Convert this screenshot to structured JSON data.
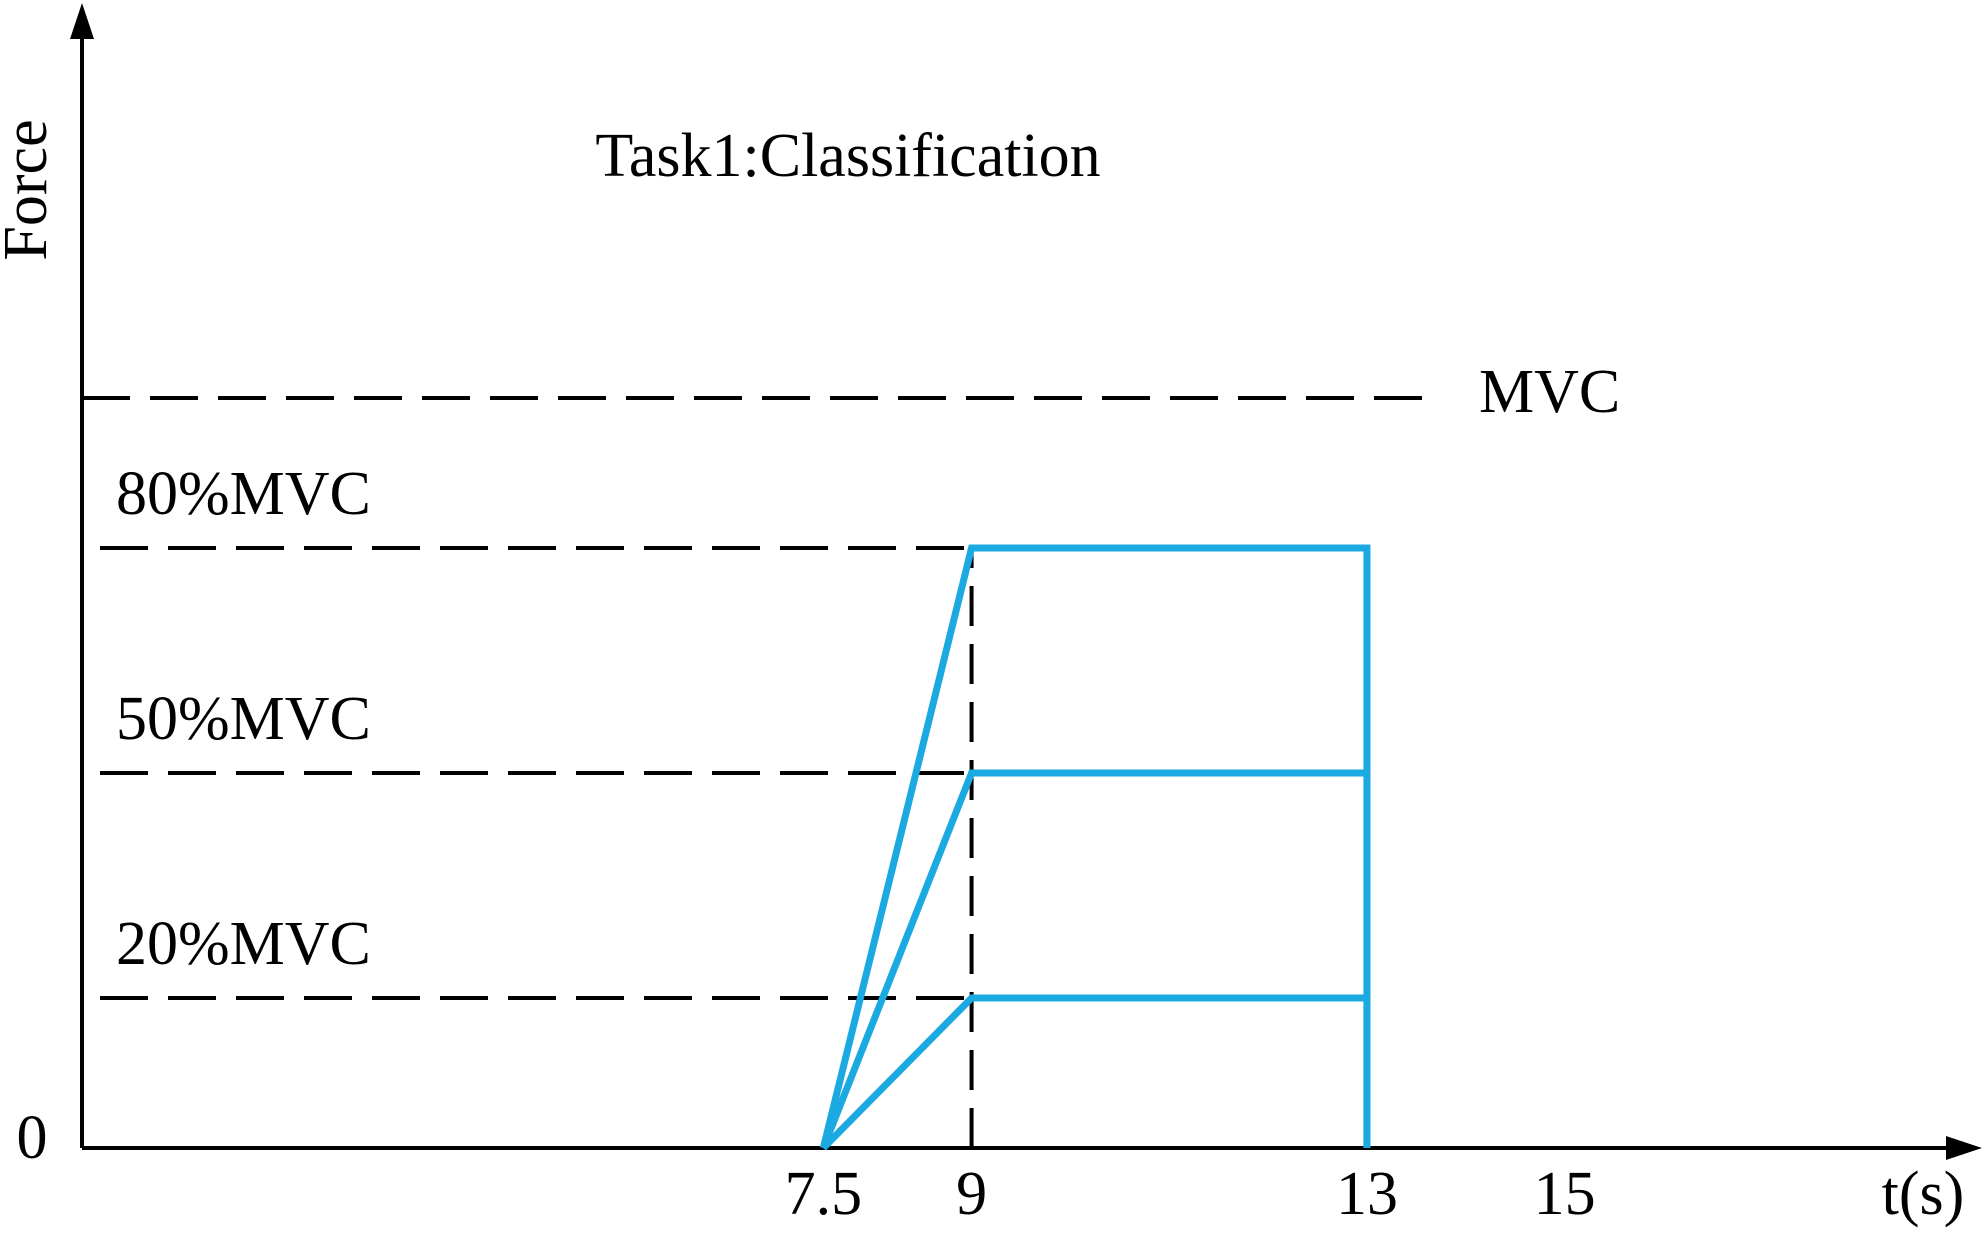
{
  "chart_data": {
    "type": "line",
    "title": "Task1:Classification",
    "y_label": "Force",
    "x_label": "t(s)",
    "xlim": [
      0,
      19
    ],
    "ylim": [
      0,
      150
    ],
    "xticks": [
      7.5,
      9,
      13,
      15
    ],
    "yticks": [
      0
    ],
    "reference_lines": [
      {
        "label": "MVC",
        "value": 100
      },
      {
        "label": "80%MVC",
        "value": 80
      },
      {
        "label": "50%MVC",
        "value": 50
      },
      {
        "label": "20%MVC",
        "value": 20
      }
    ],
    "series": [
      {
        "color": "#1ba9e1",
        "x": [
          7.5,
          9,
          13,
          13
        ],
        "values": [
          0,
          80,
          80,
          0
        ]
      },
      {
        "color": "#1ba9e1",
        "x": [
          7.5,
          9,
          13,
          13
        ],
        "values": [
          0,
          50,
          50,
          0
        ]
      },
      {
        "color": "#1ba9e1",
        "x": [
          7.5,
          9,
          13,
          13
        ],
        "values": [
          0,
          20,
          20,
          0
        ]
      }
    ]
  }
}
